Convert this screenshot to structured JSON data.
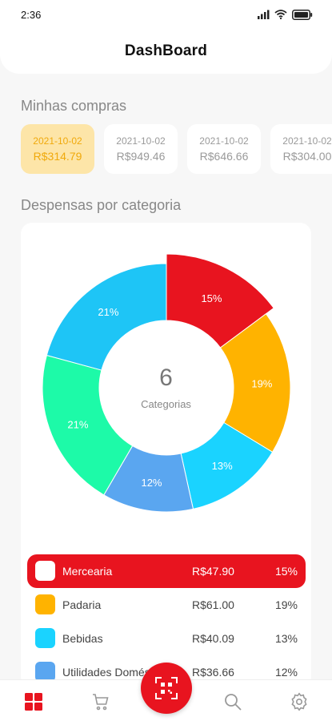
{
  "status_bar": {
    "time": "2:36"
  },
  "header": {
    "title": "DashBoard"
  },
  "purchases": {
    "title": "Minhas compras",
    "items": [
      {
        "date": "2021-10-02",
        "amount": "R$314.79",
        "active": true
      },
      {
        "date": "2021-10-02",
        "amount": "R$949.46",
        "active": false
      },
      {
        "date": "2021-10-02",
        "amount": "R$646.66",
        "active": false
      },
      {
        "date": "2021-10-02",
        "amount": "R$304.00",
        "active": false
      }
    ]
  },
  "categories": {
    "title": "Despensas por categoria",
    "center_count": "6",
    "center_label": "Categorias",
    "selected": "Mercearia",
    "items": [
      {
        "name": "Mercearia",
        "value": "R$47.90",
        "pct": "15%",
        "share": 15,
        "color": "#e8141f"
      },
      {
        "name": "Padaria",
        "value": "R$61.00",
        "pct": "19%",
        "share": 19,
        "color": "#ffb300"
      },
      {
        "name": "Bebidas",
        "value": "R$40.09",
        "pct": "13%",
        "share": 13,
        "color": "#1ad3ff"
      },
      {
        "name": "Utilidades Domésticas",
        "value": "R$36.66",
        "pct": "12%",
        "share": 12,
        "color": "#5aa6f0"
      },
      {
        "name": "",
        "value": "",
        "pct": "21%",
        "share": 21,
        "color": "#1dfaa8"
      },
      {
        "name": "",
        "value": "",
        "pct": "21%",
        "share": 21,
        "color": "#1ec5f6"
      }
    ]
  },
  "nav": {
    "items": [
      {
        "icon": "dashboard-icon",
        "active": true
      },
      {
        "icon": "cart-icon",
        "active": false
      },
      {
        "icon": "qr-scan-icon",
        "active": false
      },
      {
        "icon": "search-icon",
        "active": false
      },
      {
        "icon": "settings-icon",
        "active": false
      }
    ]
  },
  "colors": {
    "accent": "#e8141f",
    "active_card_bg": "#fde5a8",
    "active_card_text": "#f0a90c"
  }
}
